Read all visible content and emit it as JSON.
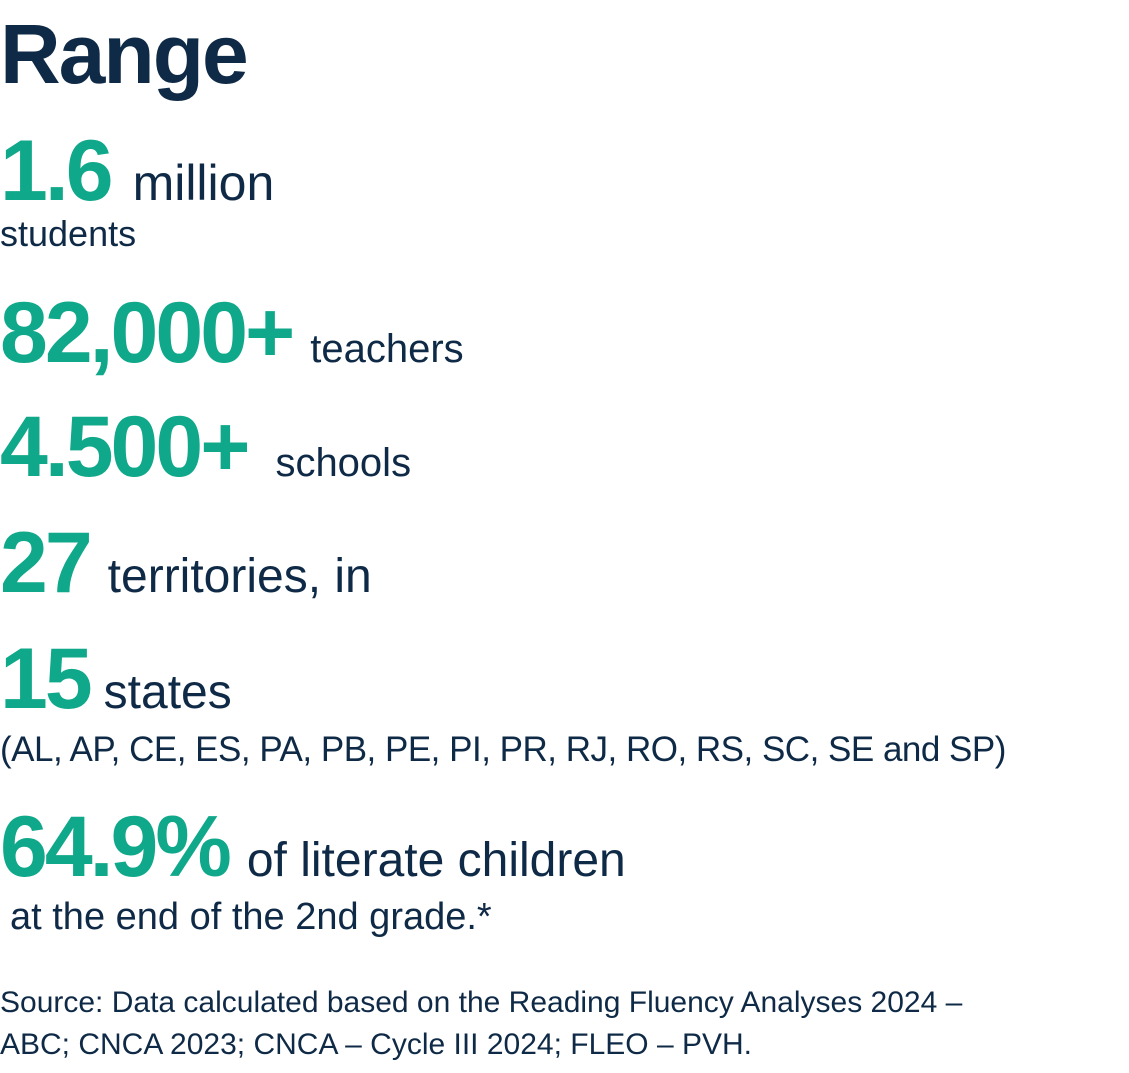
{
  "title": "Range",
  "colors": {
    "accent": "#10a88a",
    "text": "#0f2a46"
  },
  "stats": [
    {
      "value": "1.6",
      "label": "million",
      "sub": "students"
    },
    {
      "value": "82,000+",
      "label": "teachers"
    },
    {
      "value": "4.500+",
      "label": "schools"
    },
    {
      "value": "27",
      "label": "territories, in"
    },
    {
      "value": "15",
      "label": "states",
      "sub": "(AL, AP, CE, ES, PA, PB, PE, PI, PR, RJ, RO, RS, SC, SE and SP)"
    },
    {
      "value": "64.9%",
      "label": "of literate children",
      "sub": "at the end of the 2nd grade.*"
    }
  ],
  "source": {
    "line1": "Source: Data calculated based on the Reading Fluency Analyses 2024 –",
    "line2": "ABC; CNCA 2023; CNCA – Cycle III 2024; FLEO – PVH."
  }
}
